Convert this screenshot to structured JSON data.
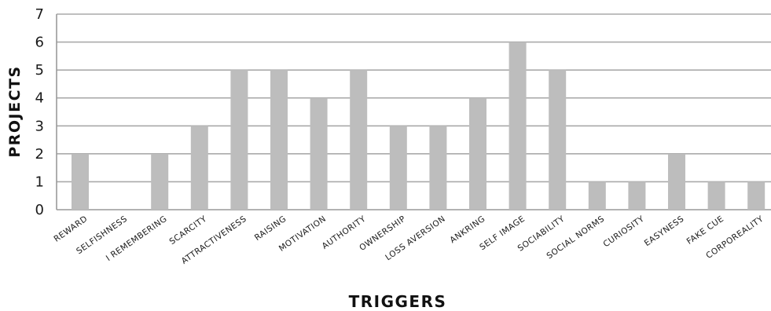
{
  "chart_data": {
    "type": "bar",
    "categories": [
      "Reward",
      "Selfishness",
      "I remembering",
      "Scarcity",
      "Attractiveness",
      "Raising",
      "Motivation",
      "Authority",
      "Ownership",
      "Loss aversion",
      "Ankring",
      "Self image",
      "Sociability",
      "Social norms",
      "Curiosity",
      "Easyness",
      "Fake cue",
      "Corporeality"
    ],
    "values": [
      2,
      0,
      2,
      3,
      5,
      5,
      4,
      5,
      3,
      3,
      4,
      6,
      5,
      1,
      1,
      2,
      1,
      1
    ],
    "xlabel": "Triggers",
    "ylabel": "Projects",
    "ylim": [
      0,
      7
    ],
    "yticks": [
      "0",
      "1",
      "2",
      "3",
      "4",
      "5",
      "6",
      "7"
    ],
    "grid": true,
    "legend": "none",
    "bar_color": "#bdbdbd",
    "grid_color": "#aaaaaa"
  }
}
